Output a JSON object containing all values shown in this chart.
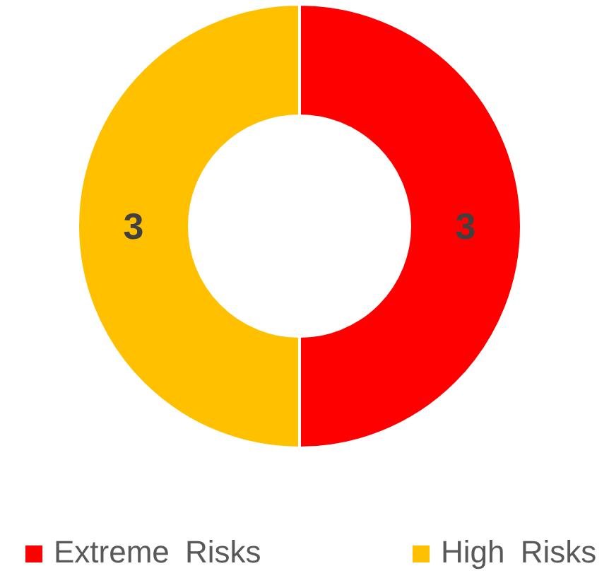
{
  "chart_data": {
    "type": "donut",
    "categories": [
      "Extreme Risks",
      "High Risks"
    ],
    "values": [
      3,
      3
    ],
    "colors": [
      "#ff0000",
      "#ffc000"
    ],
    "data_labels": true,
    "legend": "bottom"
  }
}
